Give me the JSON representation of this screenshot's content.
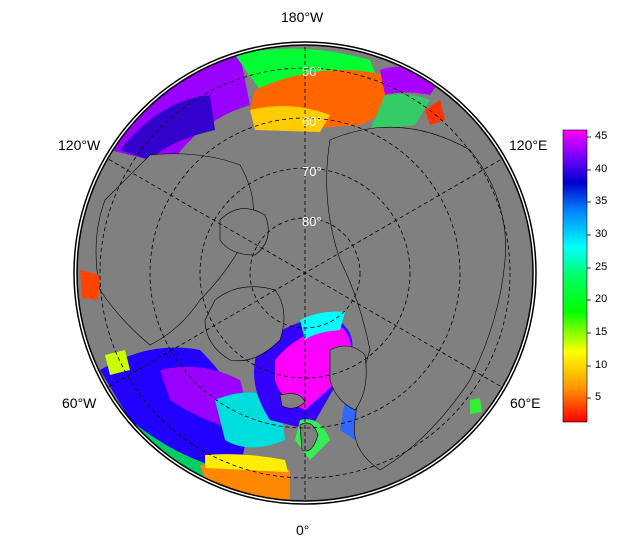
{
  "map": {
    "longitude_labels": {
      "top": "180°W",
      "left_upper": "120°W",
      "right_upper": "120°E",
      "left_lower": "60°W",
      "right_lower": "60°E",
      "bottom": "0°"
    },
    "latitude_labels": [
      "50°",
      "60°",
      "70°",
      "80°"
    ],
    "land_color": "#808080",
    "outline_color": "#000000"
  },
  "colorbar": {
    "ticks": [
      "45",
      "40",
      "35",
      "30",
      "25",
      "20",
      "15",
      "10",
      "5"
    ],
    "colors": [
      "#ff0000",
      "#ff8800",
      "#ffff00",
      "#00ff00",
      "#00ffff",
      "#0088ff",
      "#0000cc",
      "#8800ff",
      "#ff00ff"
    ]
  }
}
